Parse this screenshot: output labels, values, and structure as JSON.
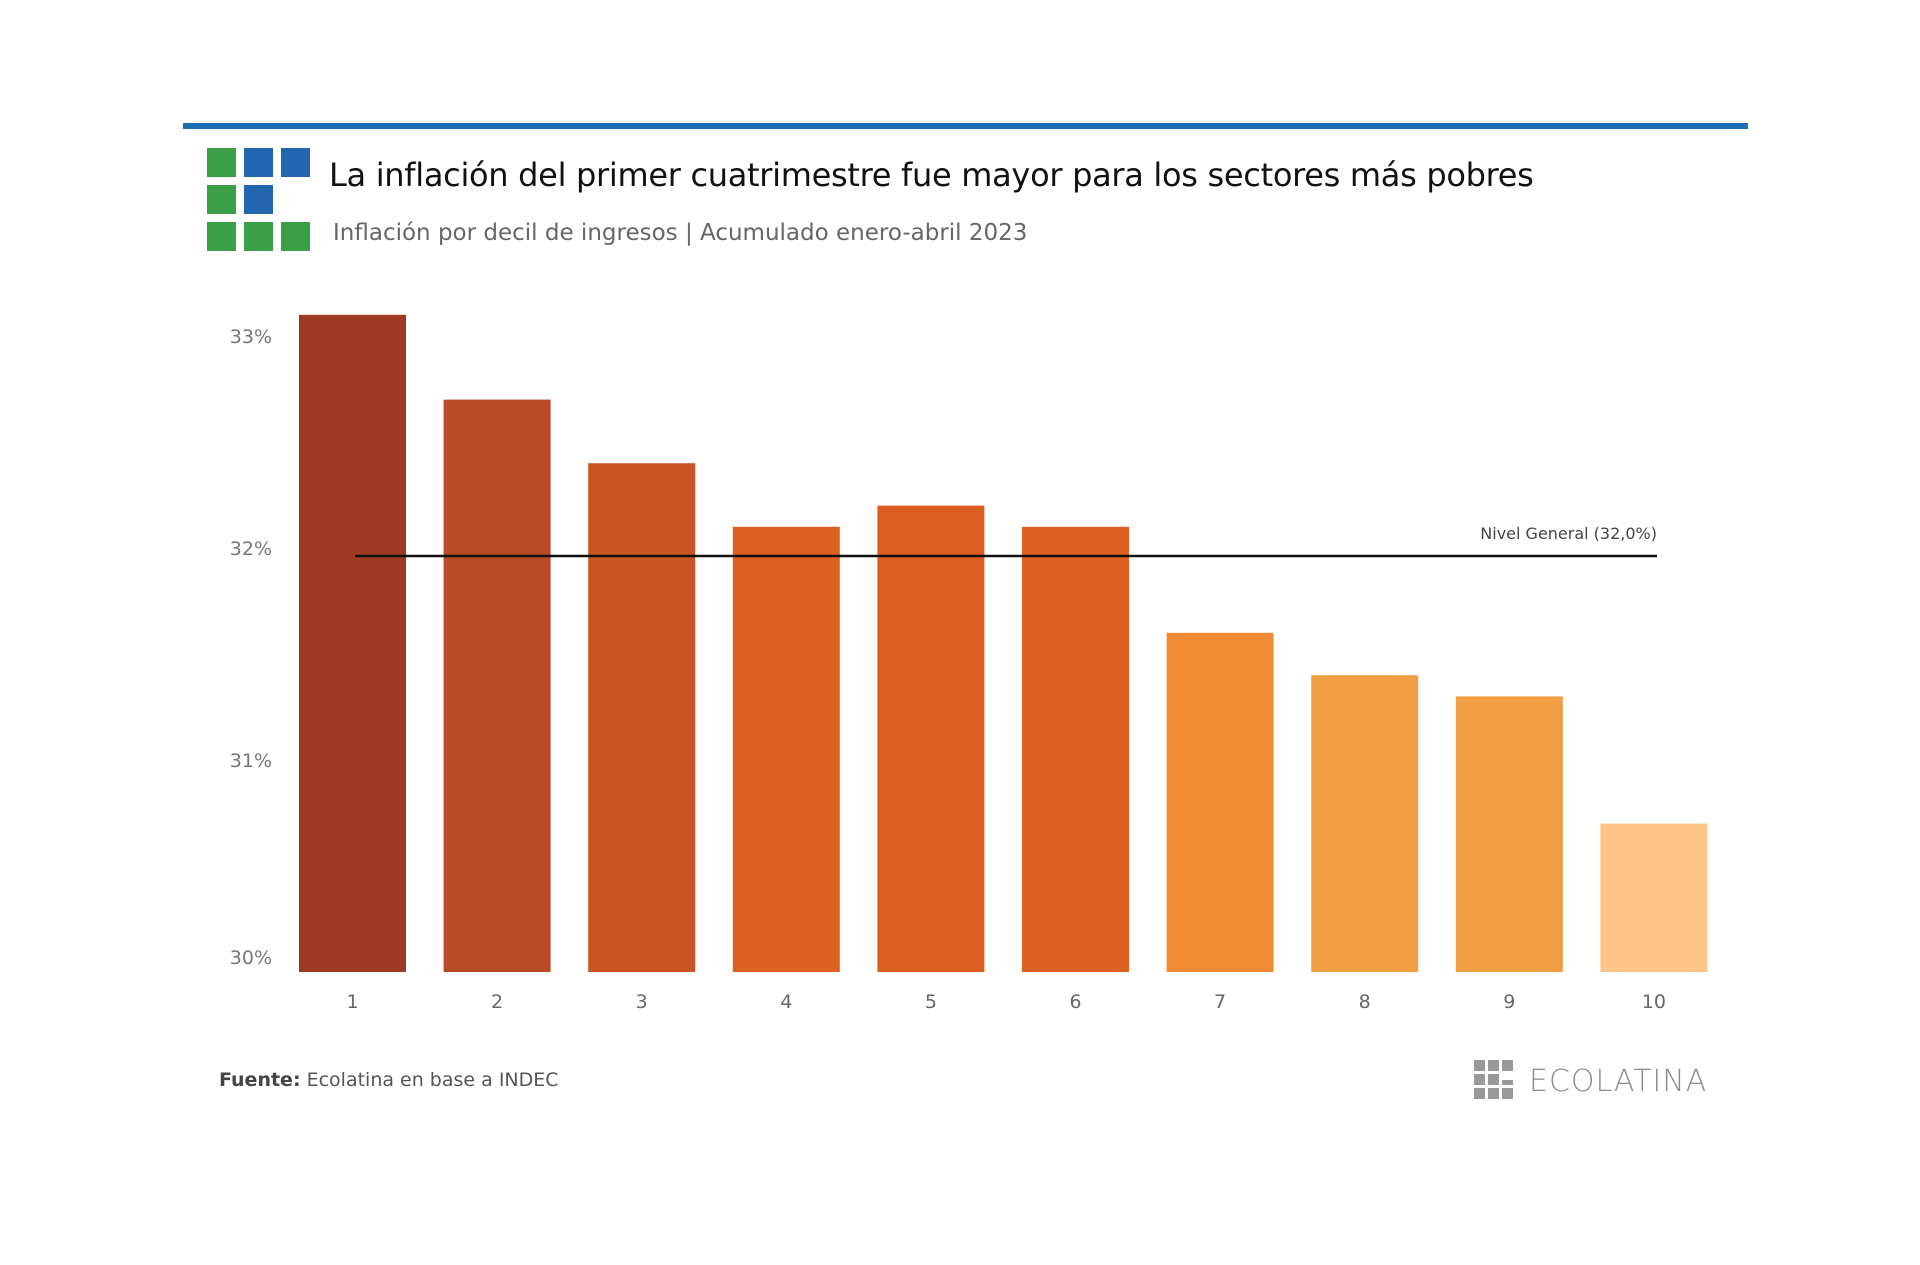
{
  "header": {
    "title": "La inflación del primer cuatrimestre fue mayor para los sectores más pobres",
    "subtitle": "Inflación por decil de ingresos | Acumulado enero-abril 2023",
    "accent_color": "#1f6fb8",
    "logo_colors": {
      "green": "#3a9f45",
      "blue": "#2166ae"
    }
  },
  "chart_data": {
    "type": "bar",
    "title": "La inflación del primer cuatrimestre fue mayor para los sectores más pobres",
    "subtitle": "Inflación por decil de ingresos | Acumulado enero-abril 2023",
    "xlabel": "",
    "ylabel": "",
    "categories": [
      "1",
      "2",
      "3",
      "4",
      "5",
      "6",
      "7",
      "8",
      "9",
      "10"
    ],
    "values": [
      33.1,
      32.7,
      32.4,
      32.1,
      32.2,
      32.1,
      31.6,
      31.4,
      31.3,
      30.7
    ],
    "unit": "%",
    "ylim": [
      30,
      33
    ],
    "yticks": [
      30,
      31,
      32,
      33
    ],
    "ytick_labels": [
      "30%",
      "31%",
      "32%",
      "33%"
    ],
    "grid": false,
    "bar_colors": [
      "#9e3b22",
      "#b84a24",
      "#c95622",
      "#dc6022",
      "#db5e21",
      "#de6122",
      "#f08a33",
      "#f29e42",
      "#f19d42",
      "#fcc586"
    ],
    "reference_line": {
      "value": 32.0,
      "label": "Nivel General (32,0%)",
      "color": "#111111"
    }
  },
  "footer": {
    "source_label": "Fuente:",
    "source_text": " Ecolatina en base a INDEC",
    "brand": "ECOLATINA"
  }
}
